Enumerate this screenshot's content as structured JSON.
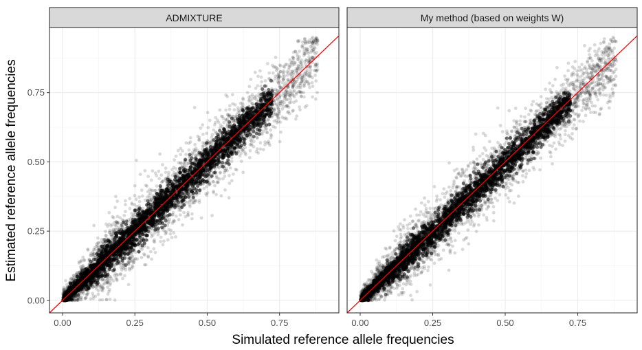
{
  "chart_data": {
    "type": "scatter",
    "xlabel": "Simulated reference allele frequencies",
    "ylabel": "Estimated reference allele frequencies",
    "xlim": [
      -0.045,
      0.955
    ],
    "ylim": [
      -0.045,
      0.985
    ],
    "x_ticks": [
      "0.00",
      "0.25",
      "0.50",
      "0.75"
    ],
    "y_ticks": [
      "0.00",
      "0.25",
      "0.50",
      "0.75"
    ],
    "grid": true,
    "point_color": "#000000",
    "point_alpha": 0.15,
    "reference_line": {
      "type": "y=x",
      "color": "#ff0000"
    },
    "panels": [
      {
        "title": "ADMIXTURE",
        "spread": 0.075,
        "bias": 0.0
      },
      {
        "title": "My method (based on weights W)",
        "spread": 0.07,
        "bias": -0.01
      }
    ]
  }
}
